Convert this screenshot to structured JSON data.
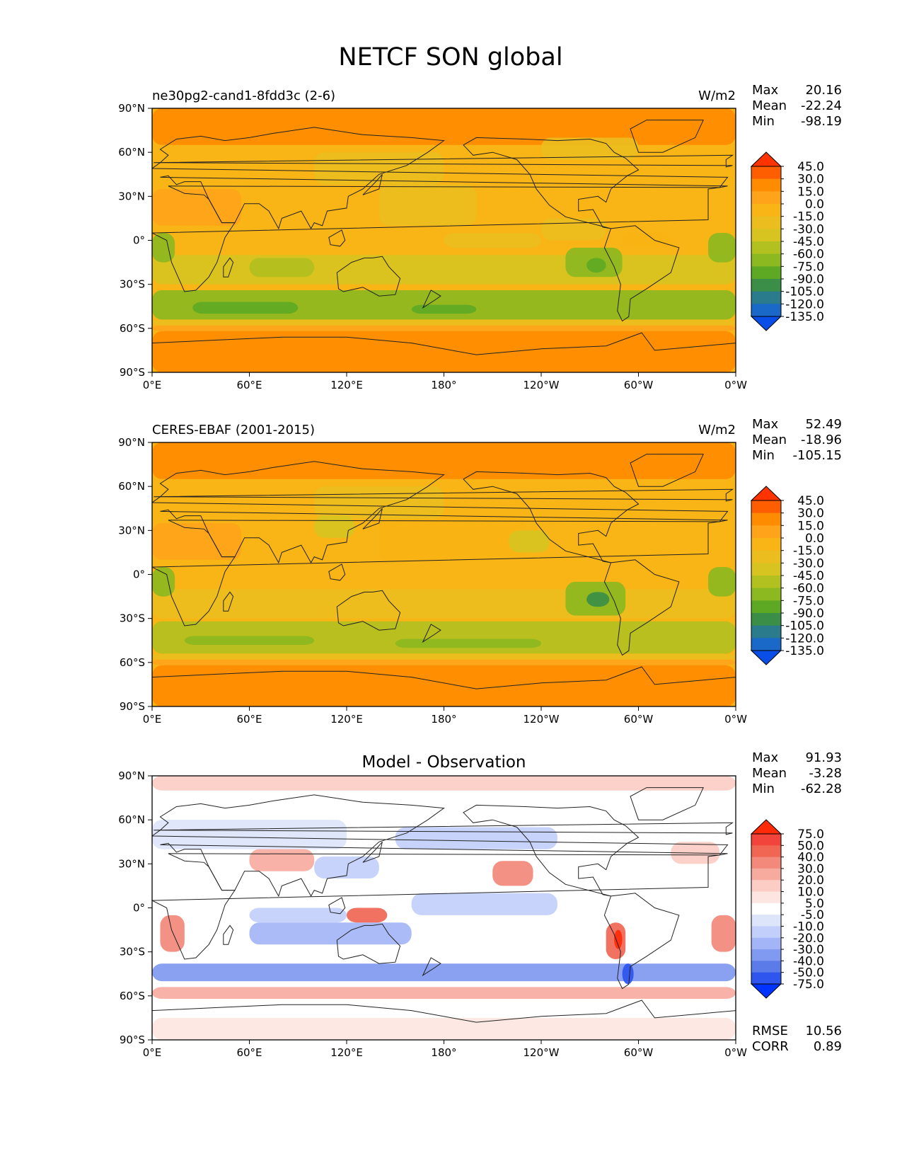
{
  "figure": {
    "title": "NETCF SON global"
  },
  "chart_data": [
    {
      "type": "heatmap",
      "panel": "test",
      "left_title": "ne30pg2-cand1-8fdd3c (2-6)",
      "center_title": "",
      "units": "W/m2",
      "xlim": [
        0,
        360
      ],
      "ylim": [
        -90,
        90
      ],
      "x_ticks": [
        "0°E",
        "60°E",
        "120°E",
        "180°",
        "120°W",
        "60°W",
        "0°W"
      ],
      "y_ticks": [
        "90°S",
        "60°S",
        "30°S",
        "0°",
        "30°N",
        "60°N",
        "90°N"
      ],
      "stats": [
        {
          "label": "Max",
          "value": "20.16"
        },
        {
          "label": "Mean",
          "value": "-22.24"
        },
        {
          "label": "Min",
          "value": "-98.19"
        }
      ],
      "colorbar": {
        "levels": [
          "45.0",
          "30.0",
          "15.0",
          "0.0",
          "-15.0",
          "-30.0",
          "-45.0",
          "-60.0",
          "-75.0",
          "-90.0",
          "-105.0",
          "-120.0",
          "-135.0"
        ],
        "colors": [
          "#ff3300",
          "#ff5e00",
          "#ff8c00",
          "#ffa41a",
          "#f9b415",
          "#ecbd1e",
          "#d8c421",
          "#b2c020",
          "#8cb820",
          "#5ea924",
          "#3b8e48",
          "#2a7b8c",
          "#1a69c8",
          "#0a4ee8"
        ],
        "extend": "both"
      }
    },
    {
      "type": "heatmap",
      "panel": "reference",
      "left_title": "CERES-EBAF (2001-2015)",
      "center_title": "",
      "units": "W/m2",
      "xlim": [
        0,
        360
      ],
      "ylim": [
        -90,
        90
      ],
      "x_ticks": [
        "0°E",
        "60°E",
        "120°E",
        "180°",
        "120°W",
        "60°W",
        "0°W"
      ],
      "y_ticks": [
        "90°S",
        "60°S",
        "30°S",
        "0°",
        "30°N",
        "60°N",
        "90°N"
      ],
      "stats": [
        {
          "label": "Max",
          "value": "52.49"
        },
        {
          "label": "Mean",
          "value": "-18.96"
        },
        {
          "label": "Min",
          "value": "-105.15"
        }
      ],
      "colorbar": {
        "levels": [
          "45.0",
          "30.0",
          "15.0",
          "0.0",
          "-15.0",
          "-30.0",
          "-45.0",
          "-60.0",
          "-75.0",
          "-90.0",
          "-105.0",
          "-120.0",
          "-135.0"
        ],
        "colors": [
          "#ff3300",
          "#ff5e00",
          "#ff8c00",
          "#ffa41a",
          "#f9b415",
          "#ecbd1e",
          "#d8c421",
          "#b2c020",
          "#8cb820",
          "#5ea924",
          "#3b8e48",
          "#2a7b8c",
          "#1a69c8",
          "#0a4ee8"
        ],
        "extend": "both"
      }
    },
    {
      "type": "heatmap",
      "panel": "difference",
      "left_title": "",
      "center_title": "Model - Observation",
      "units": "",
      "xlim": [
        0,
        360
      ],
      "ylim": [
        -90,
        90
      ],
      "x_ticks": [
        "0°E",
        "60°E",
        "120°E",
        "180°",
        "120°W",
        "60°W",
        "0°W"
      ],
      "y_ticks": [
        "90°S",
        "60°S",
        "30°S",
        "0°",
        "30°N",
        "60°N",
        "90°N"
      ],
      "stats": [
        {
          "label": "Max",
          "value": "91.93"
        },
        {
          "label": "Mean",
          "value": "-3.28"
        },
        {
          "label": "Min",
          "value": "-62.28"
        }
      ],
      "extra_stats": [
        {
          "label": "RMSE",
          "value": "10.56"
        },
        {
          "label": "CORR",
          "value": "0.89"
        }
      ],
      "colorbar": {
        "levels": [
          "75.0",
          "50.0",
          "40.0",
          "30.0",
          "20.0",
          "10.0",
          "5.0",
          "-5.0",
          "-10.0",
          "-20.0",
          "-30.0",
          "-40.0",
          "-50.0",
          "-75.0"
        ],
        "colors": [
          "#ff2a0a",
          "#f2443a",
          "#f06652",
          "#f2897a",
          "#f7ab9f",
          "#fbcdc4",
          "#fde6e1",
          "#ffffff",
          "#dde5fb",
          "#c2cffa",
          "#a3b5f7",
          "#8099f1",
          "#5b7be9",
          "#2e55ee",
          "#0033ff"
        ],
        "extend": "both"
      }
    }
  ]
}
